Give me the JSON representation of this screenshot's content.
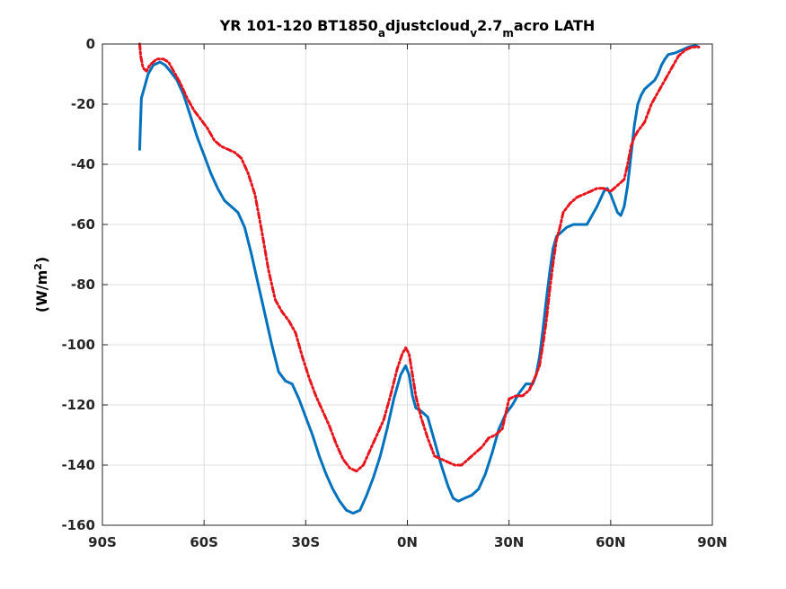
{
  "chart_data": {
    "type": "line",
    "title": {
      "parts": [
        {
          "text": "YR 101-120 BT1850",
          "sub": false
        },
        {
          "text": "a",
          "sub": true
        },
        {
          "text": "djustcloud",
          "sub": false
        },
        {
          "text": "v",
          "sub": true
        },
        {
          "text": "2.7",
          "sub": false
        },
        {
          "text": "m",
          "sub": true
        },
        {
          "text": "acro LATH",
          "sub": false
        }
      ]
    },
    "ylabel": {
      "prefix": "(W/m",
      "sup": "2",
      "suffix": ")"
    },
    "xlabel": "",
    "xlim": [
      -90,
      90
    ],
    "ylim": [
      -160,
      0
    ],
    "xticks": [
      {
        "value": -90,
        "label": "90S"
      },
      {
        "value": -60,
        "label": "60S"
      },
      {
        "value": -30,
        "label": "30S"
      },
      {
        "value": 0,
        "label": "0N"
      },
      {
        "value": 30,
        "label": "30N"
      },
      {
        "value": 60,
        "label": "60N"
      },
      {
        "value": 90,
        "label": "90N"
      }
    ],
    "yticks": [
      {
        "value": 0,
        "label": "0"
      },
      {
        "value": -20,
        "label": "-20"
      },
      {
        "value": -40,
        "label": "-40"
      },
      {
        "value": -60,
        "label": "-60"
      },
      {
        "value": -80,
        "label": "-80"
      },
      {
        "value": -100,
        "label": "-100"
      },
      {
        "value": -120,
        "label": "-120"
      },
      {
        "value": -140,
        "label": "-140"
      },
      {
        "value": -160,
        "label": "-160"
      }
    ],
    "grid": true,
    "series": [
      {
        "color": "#0072bd",
        "style": "solid",
        "points": [
          [
            -79,
            -35
          ],
          [
            -78.8,
            -28
          ],
          [
            -78.5,
            -18
          ],
          [
            -77.5,
            -14
          ],
          [
            -76.5,
            -10
          ],
          [
            -75,
            -7
          ],
          [
            -73,
            -6
          ],
          [
            -71.5,
            -7
          ],
          [
            -70,
            -9
          ],
          [
            -68,
            -12
          ],
          [
            -66,
            -17
          ],
          [
            -64,
            -24
          ],
          [
            -62,
            -31
          ],
          [
            -60,
            -37
          ],
          [
            -58,
            -43
          ],
          [
            -56,
            -48
          ],
          [
            -54,
            -52
          ],
          [
            -52,
            -54
          ],
          [
            -50,
            -56
          ],
          [
            -48,
            -61
          ],
          [
            -46,
            -70
          ],
          [
            -44,
            -80
          ],
          [
            -42,
            -90
          ],
          [
            -40,
            -100
          ],
          [
            -38,
            -109
          ],
          [
            -36,
            -112
          ],
          [
            -34,
            -113
          ],
          [
            -32,
            -118
          ],
          [
            -30,
            -124
          ],
          [
            -28,
            -130
          ],
          [
            -26,
            -137
          ],
          [
            -24,
            -143
          ],
          [
            -22,
            -148
          ],
          [
            -20,
            -152
          ],
          [
            -18,
            -155
          ],
          [
            -16,
            -156
          ],
          [
            -14,
            -155
          ],
          [
            -12,
            -150
          ],
          [
            -10,
            -144
          ],
          [
            -8,
            -137
          ],
          [
            -6,
            -128
          ],
          [
            -4,
            -118
          ],
          [
            -2,
            -110
          ],
          [
            -0.5,
            -107
          ],
          [
            0.5,
            -110
          ],
          [
            1.5,
            -117
          ],
          [
            2.5,
            -121
          ],
          [
            4,
            -122
          ],
          [
            6,
            -124
          ],
          [
            8,
            -132
          ],
          [
            10,
            -140
          ],
          [
            12,
            -147
          ],
          [
            13.5,
            -151
          ],
          [
            15,
            -152
          ],
          [
            17,
            -151
          ],
          [
            19,
            -150
          ],
          [
            21,
            -148
          ],
          [
            23,
            -143
          ],
          [
            25,
            -136
          ],
          [
            27,
            -128
          ],
          [
            29,
            -123
          ],
          [
            31,
            -120
          ],
          [
            33,
            -116
          ],
          [
            35,
            -113
          ],
          [
            37,
            -113
          ],
          [
            38,
            -110
          ],
          [
            39,
            -104
          ],
          [
            40,
            -95
          ],
          [
            41,
            -85
          ],
          [
            42,
            -76
          ],
          [
            43,
            -68
          ],
          [
            44,
            -64
          ],
          [
            45,
            -63
          ],
          [
            47,
            -61
          ],
          [
            49,
            -60
          ],
          [
            51,
            -60
          ],
          [
            53,
            -60
          ],
          [
            54,
            -58
          ],
          [
            56,
            -54
          ],
          [
            58,
            -49
          ],
          [
            59,
            -48
          ],
          [
            60,
            -50
          ],
          [
            61,
            -53
          ],
          [
            62,
            -56
          ],
          [
            63,
            -57
          ],
          [
            64,
            -54
          ],
          [
            65,
            -47
          ],
          [
            66,
            -37
          ],
          [
            67,
            -27
          ],
          [
            68,
            -20
          ],
          [
            69,
            -17
          ],
          [
            70,
            -15
          ],
          [
            71,
            -14
          ],
          [
            72,
            -13
          ],
          [
            73,
            -12
          ],
          [
            74,
            -10
          ],
          [
            75,
            -7
          ],
          [
            76,
            -5
          ],
          [
            77,
            -3.5
          ],
          [
            79,
            -3
          ],
          [
            81,
            -2
          ],
          [
            83,
            -1
          ],
          [
            85,
            -0.5
          ],
          [
            86,
            -1
          ]
        ]
      },
      {
        "color": "#e8141c",
        "style": "dashdot",
        "points": [
          [
            -79,
            0
          ],
          [
            -78.7,
            -4
          ],
          [
            -78,
            -8
          ],
          [
            -77,
            -9
          ],
          [
            -76,
            -7
          ],
          [
            -74,
            -5
          ],
          [
            -72,
            -5
          ],
          [
            -70.5,
            -6
          ],
          [
            -69,
            -9
          ],
          [
            -67,
            -13
          ],
          [
            -65,
            -18
          ],
          [
            -63,
            -22
          ],
          [
            -61,
            -25
          ],
          [
            -59,
            -28
          ],
          [
            -57,
            -32
          ],
          [
            -55,
            -34
          ],
          [
            -53,
            -35
          ],
          [
            -51,
            -36
          ],
          [
            -49,
            -38
          ],
          [
            -47,
            -43
          ],
          [
            -45,
            -50
          ],
          [
            -43,
            -62
          ],
          [
            -41,
            -75
          ],
          [
            -39,
            -85
          ],
          [
            -37,
            -89
          ],
          [
            -35,
            -92
          ],
          [
            -33,
            -96
          ],
          [
            -31,
            -104
          ],
          [
            -29,
            -111
          ],
          [
            -27,
            -117
          ],
          [
            -25,
            -122
          ],
          [
            -23,
            -127
          ],
          [
            -21,
            -133
          ],
          [
            -19,
            -138
          ],
          [
            -17,
            -141
          ],
          [
            -15,
            -142
          ],
          [
            -13,
            -140
          ],
          [
            -11,
            -135
          ],
          [
            -9,
            -130
          ],
          [
            -7,
            -125
          ],
          [
            -5,
            -117
          ],
          [
            -3,
            -108
          ],
          [
            -1.5,
            -103
          ],
          [
            -0.5,
            -101
          ],
          [
            0.5,
            -103
          ],
          [
            1.5,
            -110
          ],
          [
            2.5,
            -117
          ],
          [
            4,
            -124
          ],
          [
            6,
            -131
          ],
          [
            8,
            -137
          ],
          [
            10,
            -138
          ],
          [
            12,
            -139
          ],
          [
            14,
            -140
          ],
          [
            16,
            -140
          ],
          [
            18,
            -138
          ],
          [
            20,
            -136
          ],
          [
            22,
            -134
          ],
          [
            24,
            -131
          ],
          [
            26,
            -130
          ],
          [
            28,
            -128
          ],
          [
            30,
            -118
          ],
          [
            32,
            -117
          ],
          [
            34,
            -117
          ],
          [
            36,
            -115
          ],
          [
            38,
            -110
          ],
          [
            39,
            -107
          ],
          [
            40,
            -100
          ],
          [
            41,
            -92
          ],
          [
            42,
            -82
          ],
          [
            43,
            -73
          ],
          [
            44,
            -65
          ],
          [
            45,
            -61
          ],
          [
            46,
            -56
          ],
          [
            48,
            -53
          ],
          [
            50,
            -51
          ],
          [
            52,
            -50
          ],
          [
            54,
            -49
          ],
          [
            56,
            -48
          ],
          [
            58,
            -48
          ],
          [
            60,
            -49
          ],
          [
            62,
            -47
          ],
          [
            64,
            -45
          ],
          [
            65,
            -40
          ],
          [
            66,
            -34
          ],
          [
            67,
            -31
          ],
          [
            68,
            -29
          ],
          [
            70,
            -26
          ],
          [
            72,
            -20
          ],
          [
            74,
            -16
          ],
          [
            76,
            -12
          ],
          [
            78,
            -8
          ],
          [
            80,
            -4
          ],
          [
            82,
            -2
          ],
          [
            84,
            -1
          ],
          [
            86,
            -1
          ]
        ]
      }
    ]
  }
}
